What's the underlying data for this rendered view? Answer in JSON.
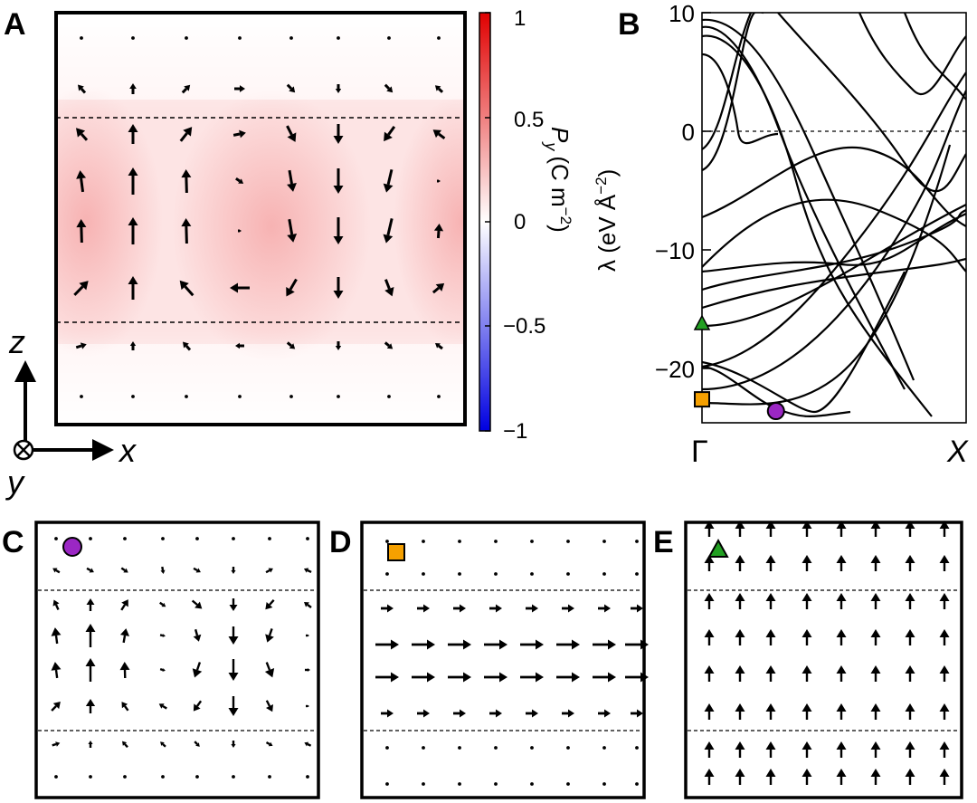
{
  "panels": {
    "A": {
      "label": "A"
    },
    "B": {
      "label": "B"
    },
    "C": {
      "label": "C"
    },
    "D": {
      "label": "D"
    },
    "E": {
      "label": "E"
    }
  },
  "colorbar": {
    "label_main": "P",
    "label_sub": "y",
    "label_units": "(C m",
    "label_exp": "−2",
    "label_close": ")",
    "ticks": [
      "1",
      "0.5",
      "0",
      "−0.5",
      "−1"
    ],
    "colors": {
      "max": "#e00000",
      "mid": "#ffffff",
      "min": "#0000e0"
    }
  },
  "axes_indicator": {
    "z": "z",
    "x": "x",
    "y": "y"
  },
  "chart_data": {
    "type": "line",
    "title": "",
    "ylabel_main": "λ (eV Å",
    "ylabel_exp": "−2",
    "ylabel_close": ")",
    "x_ticks": [
      "Γ",
      "X"
    ],
    "y_ticks": [
      "10",
      "0",
      "−10",
      "−20"
    ],
    "ylim": [
      -25,
      10
    ],
    "grid": false,
    "markers": [
      {
        "name": "circle",
        "x": 0.28,
        "y": -24.0,
        "color": "#9b27c4"
      },
      {
        "name": "square",
        "x": 0.0,
        "y": -23.0,
        "color": "#f5a000"
      },
      {
        "name": "triangle",
        "x": 0.0,
        "y": -16.5,
        "color": "#22a022"
      }
    ]
  }
}
